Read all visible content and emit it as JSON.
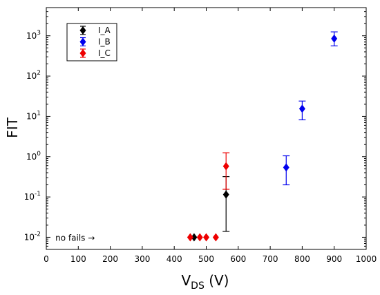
{
  "chart_data": {
    "type": "scatter",
    "title": "",
    "xlabel_main": "V",
    "xlabel_sub": "DS",
    "xlabel_unit": " (V)",
    "ylabel": "FIT",
    "x_scale": "linear",
    "y_scale": "log",
    "xlim": [
      0,
      1000
    ],
    "ylim": [
      0.005,
      5000
    ],
    "x_ticks": [
      0,
      100,
      200,
      300,
      400,
      500,
      600,
      700,
      800,
      900,
      1000
    ],
    "x_tick_labels": [
      "0",
      "100",
      "200",
      "300",
      "400",
      "500",
      "600",
      "700",
      "800",
      "900",
      "1000"
    ],
    "y_ticks": [
      0.01,
      0.1,
      1,
      10,
      100,
      1000
    ],
    "y_tick_labels": [
      {
        "base": "10",
        "exp": "-2"
      },
      {
        "base": "10",
        "exp": "-1"
      },
      {
        "base": "10",
        "exp": "0"
      },
      {
        "base": "10",
        "exp": "1"
      },
      {
        "base": "10",
        "exp": "2"
      },
      {
        "base": "10",
        "exp": "3"
      }
    ],
    "grid": false,
    "legend_position": "top-left",
    "series": [
      {
        "name": "I_A",
        "color": "#000000",
        "points": [
          {
            "x": 462,
            "y": 0.01
          },
          {
            "x": 562,
            "y": 0.115,
            "err_low": 0.014,
            "err_high": 0.32
          }
        ]
      },
      {
        "name": "I_B",
        "color": "#0000ee",
        "points": [
          {
            "x": 750,
            "y": 0.54,
            "err_low": 0.2,
            "err_high": 1.05
          },
          {
            "x": 800,
            "y": 15.5,
            "err_low": 8.2,
            "err_high": 24
          },
          {
            "x": 900,
            "y": 850,
            "err_low": 560,
            "err_high": 1250
          }
        ]
      },
      {
        "name": "I_C",
        "color": "#ee0000",
        "points": [
          {
            "x": 450,
            "y": 0.01
          },
          {
            "x": 480,
            "y": 0.01
          },
          {
            "x": 500,
            "y": 0.01
          },
          {
            "x": 530,
            "y": 0.01
          },
          {
            "x": 562,
            "y": 0.58,
            "err_low": 0.155,
            "err_high": 1.25
          }
        ]
      }
    ],
    "annotations": [
      {
        "text": "no fails →",
        "x": 50,
        "y": 0.01
      }
    ]
  }
}
